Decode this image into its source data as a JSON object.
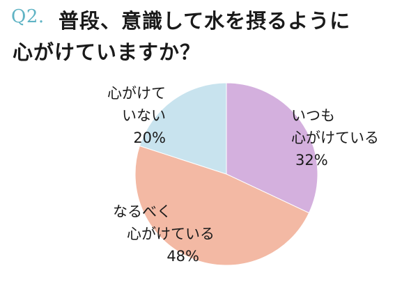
{
  "question": {
    "number": "Q2.",
    "line1": "普段、意識して水を摂るように",
    "line2": "心がけていますか？"
  },
  "colors": {
    "question_number": "#5fb3c4",
    "always": "#d4b0de",
    "try": "#f3b9a4",
    "not": "#c8e3ee"
  },
  "chart_data": {
    "type": "pie",
    "title": "普段、意識して水を摂るように心がけていますか？",
    "slices": [
      {
        "label": "いつも心がけている",
        "value": 32,
        "color": "#d4b0de"
      },
      {
        "label": "なるべく心がけている",
        "value": 48,
        "color": "#f3b9a4"
      },
      {
        "label": "心がけていない",
        "value": 20,
        "color": "#c8e3ee"
      }
    ],
    "start_angle_deg": 0,
    "direction": "clockwise",
    "legend": "none"
  },
  "labels": {
    "always": {
      "line1": "いつも",
      "line2": "心がけている",
      "pct": "32%"
    },
    "try": {
      "line1": "なるべく",
      "line2": "心がけている",
      "pct": "48%"
    },
    "not": {
      "line1": "心がけて",
      "line2": "いない",
      "pct": "20%"
    }
  }
}
